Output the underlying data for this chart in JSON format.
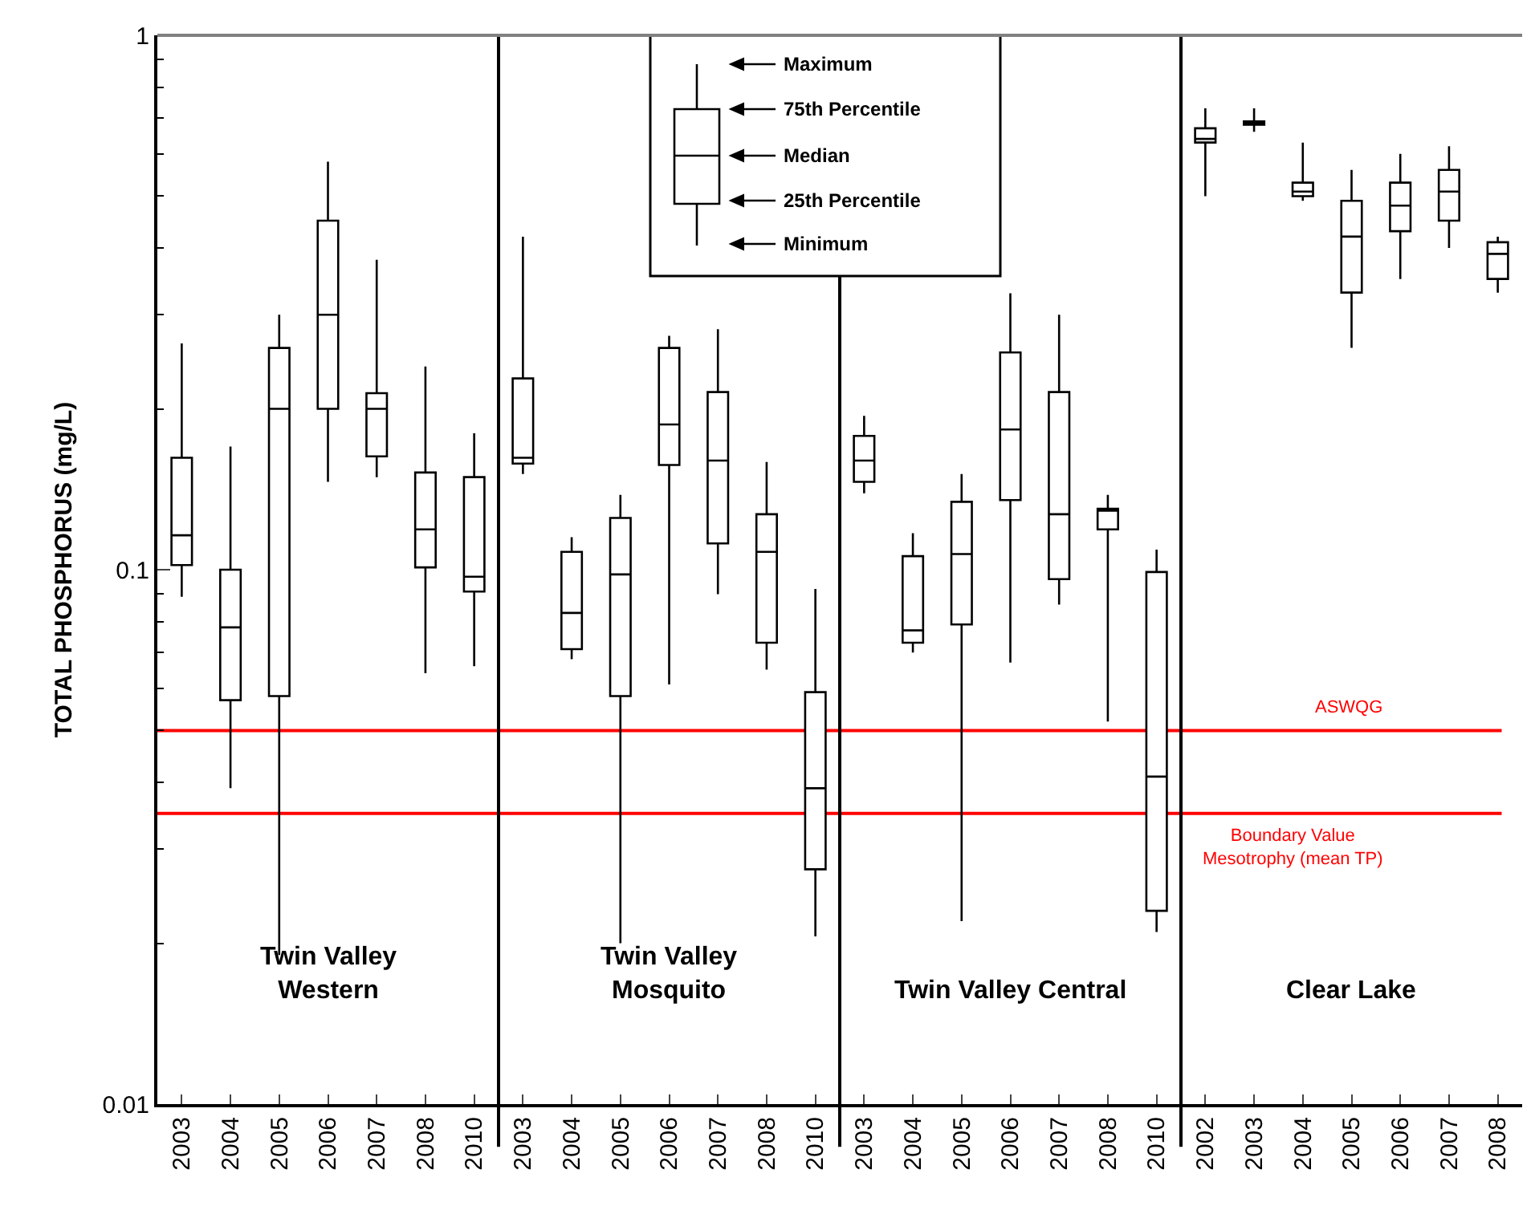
{
  "chart_data": {
    "type": "box",
    "ylabel": "TOTAL PHOSPHORUS (mg/L)",
    "categories": [
      "2003",
      "2004",
      "2005",
      "2006",
      "2007",
      "2008",
      "2010",
      "2003",
      "2004",
      "2005",
      "2006",
      "2007",
      "2008",
      "2010",
      "2003",
      "2004",
      "2005",
      "2006",
      "2007",
      "2008",
      "2010",
      "2002",
      "2003",
      "2004",
      "2005",
      "2006",
      "2007",
      "2008"
    ],
    "boxes": [
      {
        "low": 0.089,
        "q1": 0.102,
        "median": 0.116,
        "q3": 0.162,
        "high": 0.265
      },
      {
        "low": 0.039,
        "q1": 0.057,
        "median": 0.078,
        "q3": 0.1,
        "high": 0.17
      },
      {
        "low": 0.019,
        "q1": 0.058,
        "median": 0.2,
        "q3": 0.26,
        "high": 0.3
      },
      {
        "low": 0.146,
        "q1": 0.2,
        "median": 0.3,
        "q3": 0.45,
        "high": 0.58
      },
      {
        "low": 0.149,
        "q1": 0.163,
        "median": 0.2,
        "q3": 0.214,
        "high": 0.38
      },
      {
        "low": 0.064,
        "q1": 0.101,
        "median": 0.119,
        "q3": 0.152,
        "high": 0.24
      },
      {
        "low": 0.066,
        "q1": 0.091,
        "median": 0.097,
        "q3": 0.149,
        "high": 0.18
      },
      {
        "low": 0.151,
        "q1": 0.158,
        "median": 0.162,
        "q3": 0.228,
        "high": 0.42
      },
      {
        "low": 0.068,
        "q1": 0.071,
        "median": 0.083,
        "q3": 0.108,
        "high": 0.115
      },
      {
        "low": 0.02,
        "q1": 0.058,
        "median": 0.098,
        "q3": 0.125,
        "high": 0.138
      },
      {
        "low": 0.061,
        "q1": 0.157,
        "median": 0.187,
        "q3": 0.26,
        "high": 0.274
      },
      {
        "low": 0.09,
        "q1": 0.112,
        "median": 0.16,
        "q3": 0.215,
        "high": 0.282
      },
      {
        "low": 0.065,
        "q1": 0.073,
        "median": 0.108,
        "q3": 0.127,
        "high": 0.159
      },
      {
        "low": 0.0206,
        "q1": 0.0275,
        "median": 0.039,
        "q3": 0.059,
        "high": 0.092
      },
      {
        "low": 0.139,
        "q1": 0.146,
        "median": 0.16,
        "q3": 0.178,
        "high": 0.194
      },
      {
        "low": 0.07,
        "q1": 0.073,
        "median": 0.077,
        "q3": 0.106,
        "high": 0.117
      },
      {
        "low": 0.022,
        "q1": 0.079,
        "median": 0.107,
        "q3": 0.134,
        "high": 0.151
      },
      {
        "low": 0.067,
        "q1": 0.135,
        "median": 0.183,
        "q3": 0.255,
        "high": 0.329
      },
      {
        "low": 0.086,
        "q1": 0.096,
        "median": 0.127,
        "q3": 0.215,
        "high": 0.3
      },
      {
        "low": 0.052,
        "q1": 0.119,
        "median": 0.129,
        "q3": 0.13,
        "high": 0.138
      },
      {
        "low": 0.021,
        "q1": 0.023,
        "median": 0.041,
        "q3": 0.099,
        "high": 0.109
      },
      {
        "low": 0.5,
        "q1": 0.63,
        "median": 0.64,
        "q3": 0.67,
        "high": 0.73
      },
      {
        "low": 0.66,
        "q1": 0.68,
        "median": 0.69,
        "q3": 0.69,
        "high": 0.73
      },
      {
        "low": 0.49,
        "q1": 0.5,
        "median": 0.51,
        "q3": 0.53,
        "high": 0.63
      },
      {
        "low": 0.26,
        "q1": 0.33,
        "median": 0.42,
        "q3": 0.49,
        "high": 0.56
      },
      {
        "low": 0.35,
        "q1": 0.43,
        "median": 0.48,
        "q3": 0.53,
        "high": 0.6
      },
      {
        "low": 0.4,
        "q1": 0.45,
        "median": 0.51,
        "q3": 0.56,
        "high": 0.62
      },
      {
        "low": 0.33,
        "q1": 0.35,
        "median": 0.39,
        "q3": 0.41,
        "high": 0.42
      }
    ],
    "log": true,
    "ylim": [
      0.01,
      1
    ],
    "yticks": [
      0.01,
      0.1,
      1
    ],
    "ref_lines": [
      {
        "axis": "y",
        "value": 0.05,
        "label": "ASWQG",
        "color": "#ff0000"
      },
      {
        "axis": "y",
        "value": 0.035,
        "label": "Boundary Value\nMesotrophy (mean TP)",
        "color": "#ff0000"
      }
    ],
    "annotations": [
      "Twin Valley\nWestern",
      "Twin Valley\nMosquito",
      "Twin Valley Central",
      "Clear Lake",
      "Maximum",
      "75th Percentile",
      "Median",
      "25th Percentile",
      "Minimum"
    ],
    "grid": false
  }
}
